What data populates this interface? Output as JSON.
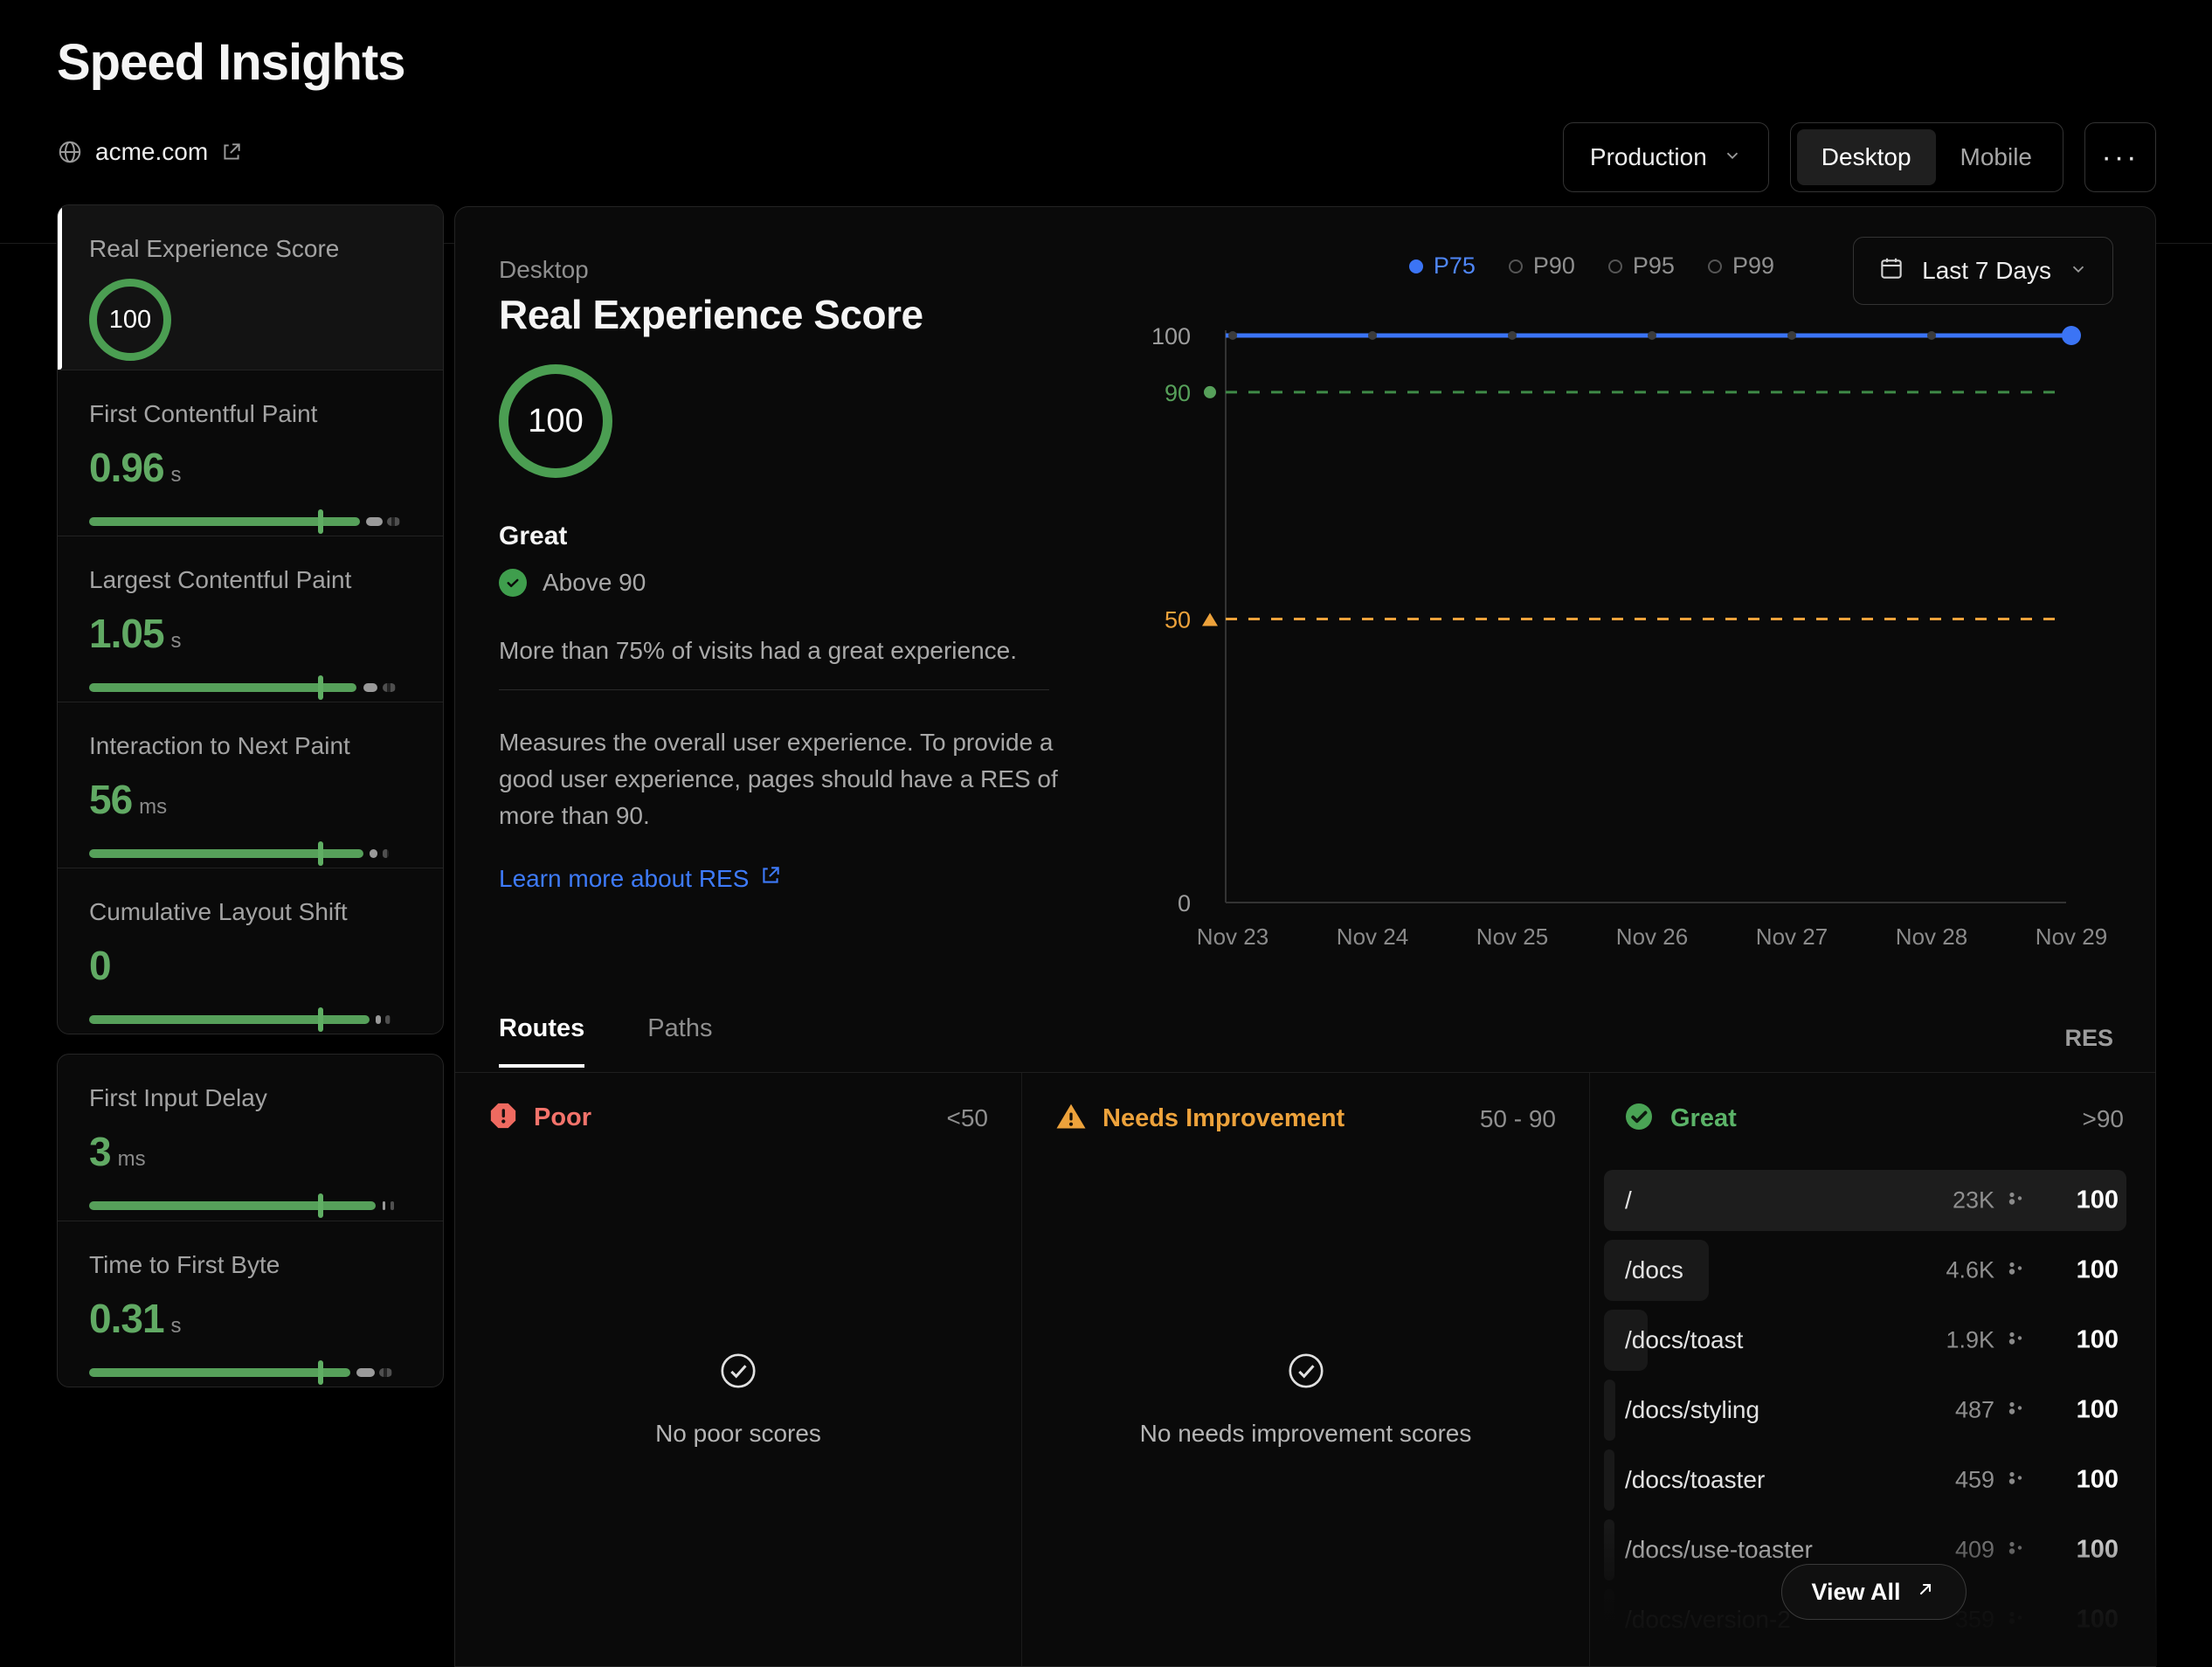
{
  "header": {
    "title": "Speed Insights",
    "site": "acme.com",
    "env_button": "Production",
    "devices": [
      "Desktop",
      "Mobile"
    ],
    "active_device": "Desktop",
    "more": "···"
  },
  "sidebar": {
    "selected": {
      "label": "Real Experience Score",
      "score": "100"
    },
    "metrics": [
      {
        "group": "a",
        "label": "First Contentful Paint",
        "value": "0.96",
        "unit": "s",
        "bar": {
          "green": 84,
          "tick": 71,
          "light": 5,
          "dark": 4
        }
      },
      {
        "group": "a",
        "label": "Largest Contentful Paint",
        "value": "1.05",
        "unit": "s",
        "bar": {
          "green": 83,
          "tick": 71,
          "light": 4.5,
          "dark": 4
        }
      },
      {
        "group": "a",
        "label": "Interaction to Next Paint",
        "value": "56",
        "unit": "ms",
        "bar": {
          "green": 85,
          "tick": 71,
          "light": 2.5,
          "dark": 2
        }
      },
      {
        "group": "a",
        "label": "Cumulative Layout Shift",
        "value": "0",
        "unit": "",
        "bar": {
          "green": 87,
          "tick": 71,
          "light": 1.5,
          "dark": 1.5
        }
      },
      {
        "group": "b",
        "label": "First Input Delay",
        "value": "3",
        "unit": "ms",
        "bar": {
          "green": 89,
          "tick": 71,
          "light": 1,
          "dark": 1
        }
      },
      {
        "group": "b",
        "label": "Time to First Byte",
        "value": "0.31",
        "unit": "s",
        "bar": {
          "green": 81,
          "tick": 71,
          "light": 5.5,
          "dark": 4
        }
      }
    ]
  },
  "main": {
    "device_label": "Desktop",
    "title": "Real Experience Score",
    "score": "100",
    "rating": "Great",
    "threshold": "Above 90",
    "summary": "More than 75% of visits had a great experience.",
    "description": "Measures the overall user experience. To provide a good user experience, pages should have a RES of more than 90.",
    "learn_more": "Learn more about RES"
  },
  "chart": {
    "percentiles": [
      {
        "label": "P75",
        "active": true
      },
      {
        "label": "P90",
        "active": false
      },
      {
        "label": "P95",
        "active": false
      },
      {
        "label": "P99",
        "active": false
      }
    ],
    "range_label": "Last 7 Days"
  },
  "chart_data": {
    "type": "line",
    "x": [
      "Nov 23",
      "Nov 24",
      "Nov 25",
      "Nov 26",
      "Nov 27",
      "Nov 28",
      "Nov 29"
    ],
    "series": [
      {
        "name": "P75",
        "values": [
          100,
          100,
          100,
          100,
          100,
          100,
          100
        ],
        "color": "#3b74f5"
      }
    ],
    "reference_lines": [
      {
        "value": 90,
        "color": "#3f8a47",
        "style": "dashed"
      },
      {
        "value": 50,
        "color": "#eda23b",
        "style": "dashed"
      }
    ],
    "yticks": [
      {
        "value": 100,
        "label": "100",
        "color": "#9c9c9c",
        "marker": "none"
      },
      {
        "value": 90,
        "label": "90",
        "color": "#56a05a",
        "marker": "dot"
      },
      {
        "value": 50,
        "label": "50",
        "color": "#eda23b",
        "marker": "triangle"
      },
      {
        "value": 0,
        "label": "0",
        "color": "#9c9c9c",
        "marker": "none"
      }
    ],
    "ylim": [
      0,
      100
    ],
    "grid": false,
    "legend_position": "top-right"
  },
  "routes_section": {
    "tabs": [
      {
        "label": "Routes",
        "active": true
      },
      {
        "label": "Paths",
        "active": false
      }
    ],
    "metric_label": "RES",
    "columns": [
      {
        "label": "Poor",
        "range": "<50",
        "empty": "No poor scores",
        "color": "#f4736b"
      },
      {
        "label": "Needs Improvement",
        "range": "50 - 90",
        "empty": "No needs improvement scores",
        "color": "#eda23b"
      },
      {
        "label": "Great",
        "range": ">90",
        "color": "#5bb368"
      }
    ],
    "routes": [
      {
        "path": "/",
        "count": "23K",
        "score": "100",
        "bar": 100,
        "highlight": true
      },
      {
        "path": "/docs",
        "count": "4.6K",
        "score": "100",
        "bar": 20
      },
      {
        "path": "/docs/toast",
        "count": "1.9K",
        "score": "100",
        "bar": 8.3
      },
      {
        "path": "/docs/styling",
        "count": "487",
        "score": "100",
        "bar": 2.1
      },
      {
        "path": "/docs/toaster",
        "count": "459",
        "score": "100",
        "bar": 2
      },
      {
        "path": "/docs/use-toaster",
        "count": "409",
        "score": "100",
        "bar": 1.8
      },
      {
        "path": "/docs/version-2",
        "count": "359",
        "score": "100",
        "bar": 1.6,
        "faded": true
      }
    ],
    "view_all": "View All"
  },
  "colors": {
    "accent_blue": "#3b74f5",
    "green": "#56a05a",
    "orange": "#eda23b",
    "red": "#ef6a60"
  }
}
